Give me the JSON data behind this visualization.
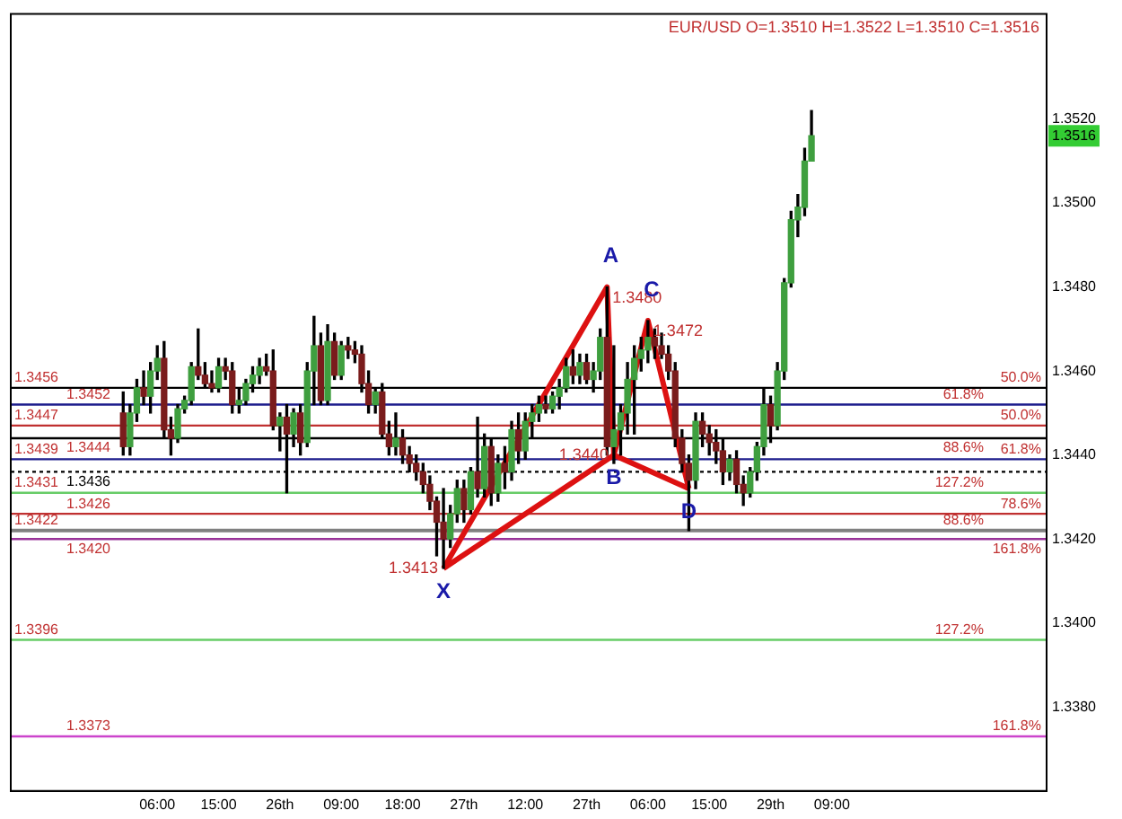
{
  "chart_data": {
    "type": "candlestick",
    "title": "EUR/USD O=1.3510 H=1.3522 L=1.3510 C=1.3516",
    "categories": [
      null,
      null,
      null,
      null,
      null,
      null,
      null,
      null,
      null,
      null,
      null,
      null,
      null,
      null,
      null,
      null,
      null,
      null,
      null,
      null,
      null,
      "06:00",
      null,
      null,
      null,
      null,
      null,
      null,
      null,
      null,
      "15:00",
      null,
      null,
      null,
      null,
      null,
      null,
      null,
      null,
      "26th",
      null,
      null,
      null,
      null,
      null,
      null,
      null,
      null,
      "09:00",
      null,
      null,
      null,
      null,
      null,
      null,
      null,
      null,
      "18:00",
      null,
      null,
      null,
      null,
      null,
      null,
      null,
      null,
      "27th",
      null,
      null,
      null,
      null,
      null,
      null,
      null,
      null,
      "12:00",
      null,
      null,
      null,
      null,
      null,
      null,
      null,
      null,
      "27th",
      null,
      null,
      null,
      null,
      null,
      null,
      null,
      null,
      "06:00",
      null,
      null,
      null,
      null,
      null,
      null,
      null,
      null,
      "15:00",
      null,
      null,
      null,
      null,
      null,
      null,
      null,
      null,
      "29th",
      null,
      null,
      null,
      null,
      null,
      null,
      null,
      null,
      "09:00",
      null,
      null,
      null,
      null,
      null,
      null,
      null,
      null,
      null,
      null,
      null,
      null,
      null,
      null,
      null,
      null,
      null,
      null,
      null,
      null,
      null,
      null,
      null,
      null,
      null,
      null,
      null,
      null,
      null,
      null,
      null
    ],
    "ohlc": [
      null,
      null,
      null,
      null,
      null,
      null,
      null,
      null,
      null,
      null,
      null,
      null,
      null,
      null,
      null,
      null,
      [
        1.345,
        1.3455,
        1.344,
        1.3442
      ],
      [
        1.3442,
        1.3452,
        1.344,
        1.345
      ],
      [
        1.345,
        1.3458,
        1.3448,
        1.3456
      ],
      [
        1.3456,
        1.346,
        1.3452,
        1.3454
      ],
      [
        1.3454,
        1.3462,
        1.345,
        1.346
      ],
      [
        1.346,
        1.3466,
        1.3458,
        1.3463
      ],
      [
        1.3463,
        1.3467,
        1.3444,
        1.3446
      ],
      [
        1.3446,
        1.3449,
        1.344,
        1.3444
      ],
      [
        1.3444,
        1.3452,
        1.3443,
        1.3451
      ],
      [
        1.3451,
        1.3454,
        1.345,
        1.3453
      ],
      [
        1.3453,
        1.3462,
        1.3452,
        1.3461
      ],
      [
        1.3461,
        1.347,
        1.3458,
        1.3459
      ],
      [
        1.3459,
        1.3462,
        1.3456,
        1.3457
      ],
      [
        1.3457,
        1.346,
        1.3455,
        1.3456
      ],
      [
        1.3456,
        1.3463,
        1.3455,
        1.3461
      ],
      [
        1.3461,
        1.3463,
        1.3458,
        1.346
      ],
      [
        1.346,
        1.3462,
        1.345,
        1.3452
      ],
      [
        1.3452,
        1.3456,
        1.345,
        1.3453
      ],
      [
        1.3453,
        1.3458,
        1.3452,
        1.3457
      ],
      [
        1.3457,
        1.3461,
        1.3455,
        1.3459
      ],
      [
        1.3459,
        1.3463,
        1.3457,
        1.3461
      ],
      [
        1.3461,
        1.3464,
        1.3459,
        1.346
      ],
      [
        1.346,
        1.3465,
        1.3446,
        1.3447
      ],
      [
        1.3447,
        1.345,
        1.3441,
        1.3449
      ],
      [
        1.3449,
        1.3452,
        1.3431,
        1.3445
      ],
      [
        1.3445,
        1.3451,
        1.3442,
        1.345
      ],
      [
        1.345,
        1.3452,
        1.344,
        1.3443
      ],
      [
        1.3443,
        1.3462,
        1.3442,
        1.346
      ],
      [
        1.346,
        1.3473,
        1.3452,
        1.3466
      ],
      [
        1.3466,
        1.3469,
        1.3452,
        1.3453
      ],
      [
        1.3453,
        1.3471,
        1.3452,
        1.3467
      ],
      [
        1.3467,
        1.3469,
        1.3458,
        1.3459
      ],
      [
        1.3459,
        1.3467,
        1.3458,
        1.3466
      ],
      [
        1.3466,
        1.3468,
        1.3463,
        1.3465
      ],
      [
        1.3465,
        1.3467,
        1.3462,
        1.3464
      ],
      [
        1.3464,
        1.3466,
        1.3455,
        1.3457
      ],
      [
        1.3457,
        1.346,
        1.345,
        1.3452
      ],
      [
        1.3452,
        1.3456,
        1.345,
        1.3455
      ],
      [
        1.3455,
        1.3457,
        1.3444,
        1.3445
      ],
      [
        1.3445,
        1.3448,
        1.344,
        1.3442
      ],
      [
        1.3442,
        1.345,
        1.344,
        1.3444
      ],
      [
        1.3444,
        1.3446,
        1.3438,
        1.344
      ],
      [
        1.344,
        1.3442,
        1.3436,
        1.3438
      ],
      [
        1.3438,
        1.344,
        1.3434,
        1.3436
      ],
      [
        1.3436,
        1.3438,
        1.3431,
        1.3433
      ],
      [
        1.3433,
        1.3435,
        1.3427,
        1.3429
      ],
      [
        1.3429,
        1.343,
        1.3416,
        1.3424
      ],
      [
        1.3424,
        1.3432,
        1.3413,
        1.342
      ],
      [
        1.342,
        1.3428,
        1.3418,
        1.3426
      ],
      [
        1.3426,
        1.3434,
        1.3424,
        1.3432
      ],
      [
        1.3432,
        1.3434,
        1.3424,
        1.3427
      ],
      [
        1.3427,
        1.3437,
        1.3426,
        1.3436
      ],
      [
        1.3436,
        1.3449,
        1.343,
        1.3432
      ],
      [
        1.3432,
        1.3445,
        1.343,
        1.3442
      ],
      [
        1.3442,
        1.3444,
        1.3428,
        1.3431
      ],
      [
        1.3431,
        1.344,
        1.3429,
        1.3438
      ],
      [
        1.3438,
        1.3442,
        1.3432,
        1.3436
      ],
      [
        1.3436,
        1.3448,
        1.3434,
        1.3446
      ],
      [
        1.3446,
        1.345,
        1.3438,
        1.3441
      ],
      [
        1.3441,
        1.345,
        1.3439,
        1.3448
      ],
      [
        1.3448,
        1.3452,
        1.3444,
        1.345
      ],
      [
        1.345,
        1.3454,
        1.3448,
        1.3452
      ],
      [
        1.3452,
        1.3454,
        1.345,
        1.3451
      ],
      [
        1.3451,
        1.3455,
        1.345,
        1.3454
      ],
      [
        1.3454,
        1.3458,
        1.3451,
        1.3456
      ],
      [
        1.3456,
        1.3463,
        1.3455,
        1.3461
      ],
      [
        1.3461,
        1.3465,
        1.3457,
        1.3459
      ],
      [
        1.3459,
        1.3464,
        1.3457,
        1.3462
      ],
      [
        1.3462,
        1.3464,
        1.3457,
        1.3458
      ],
      [
        1.3458,
        1.3462,
        1.3455,
        1.346
      ],
      [
        1.346,
        1.347,
        1.3458,
        1.3468
      ],
      [
        1.3468,
        1.348,
        1.344,
        1.3442
      ],
      [
        1.3442,
        1.3466,
        1.3438,
        1.3446
      ],
      [
        1.3446,
        1.3452,
        1.344,
        1.345
      ],
      [
        1.345,
        1.3462,
        1.3445,
        1.3458
      ],
      [
        1.3458,
        1.3466,
        1.3445,
        1.3463
      ],
      [
        1.3463,
        1.3468,
        1.346,
        1.3465
      ],
      [
        1.3465,
        1.3472,
        1.3462,
        1.3468
      ],
      [
        1.3468,
        1.347,
        1.3463,
        1.3466
      ],
      [
        1.3466,
        1.3469,
        1.3463,
        1.3464
      ],
      [
        1.3464,
        1.3466,
        1.3458,
        1.346
      ],
      [
        1.346,
        1.3462,
        1.3442,
        1.3444
      ],
      [
        1.3444,
        1.3446,
        1.3436,
        1.3438
      ],
      [
        1.3438,
        1.344,
        1.3422,
        1.3434
      ],
      [
        1.3434,
        1.345,
        1.3432,
        1.3448
      ],
      [
        1.3448,
        1.345,
        1.3442,
        1.3445
      ],
      [
        1.3445,
        1.3447,
        1.344,
        1.3443
      ],
      [
        1.3443,
        1.3446,
        1.3438,
        1.3441
      ],
      [
        1.3441,
        1.3444,
        1.3433,
        1.3436
      ],
      [
        1.3436,
        1.344,
        1.3434,
        1.3439
      ],
      [
        1.3439,
        1.3441,
        1.3431,
        1.3433
      ],
      [
        1.3433,
        1.3435,
        1.3428,
        1.3431
      ],
      [
        1.3431,
        1.3437,
        1.343,
        1.3436
      ],
      [
        1.3436,
        1.3443,
        1.3434,
        1.3442
      ],
      [
        1.3442,
        1.3456,
        1.344,
        1.3452
      ],
      [
        1.3452,
        1.3454,
        1.3443,
        1.3447
      ],
      [
        1.3447,
        1.3462,
        1.3446,
        1.346
      ],
      [
        1.346,
        1.3482,
        1.3458,
        1.3481
      ],
      [
        1.3481,
        1.3498,
        1.348,
        1.3496
      ],
      [
        1.3496,
        1.3502,
        1.3492,
        1.3499
      ],
      [
        1.3499,
        1.3513,
        1.3497,
        1.351
      ],
      [
        1.351,
        1.3522,
        1.351,
        1.3516
      ],
      null,
      null,
      null,
      null,
      null,
      null,
      null,
      null,
      null,
      null,
      null,
      null,
      null,
      null,
      null,
      null,
      null,
      null,
      null,
      null,
      null,
      null,
      null,
      null,
      null,
      null,
      null,
      null,
      null,
      null,
      null,
      null,
      null,
      null
    ],
    "series": [
      {
        "type": "line",
        "color": "#dd1111",
        "values": [
          null,
          null,
          null,
          null,
          null,
          null,
          null,
          null,
          null,
          null,
          null,
          null,
          null,
          null,
          null,
          null,
          null,
          null,
          null,
          null,
          null,
          null,
          null,
          null,
          null,
          null,
          null,
          null,
          null,
          null,
          null,
          null,
          null,
          null,
          null,
          null,
          null,
          null,
          null,
          null,
          null,
          null,
          null,
          null,
          null,
          null,
          null,
          null,
          null,
          null,
          null,
          null,
          null,
          null,
          null,
          null,
          null,
          null,
          null,
          null,
          null,
          null,
          null,
          1.3413,
          null,
          null,
          null,
          null,
          null,
          null,
          null,
          null,
          null,
          null,
          null,
          null,
          null,
          null,
          null,
          null,
          null,
          null,
          null,
          null,
          null,
          null,
          null,
          1.348,
          1.344,
          null,
          null,
          null,
          null,
          1.3472,
          null,
          null,
          null,
          null,
          null,
          1.3432,
          null,
          null,
          null,
          null,
          null,
          null,
          null,
          null,
          null,
          null,
          null,
          null,
          null,
          null,
          null,
          null,
          null,
          null,
          null,
          null,
          null,
          null,
          null,
          null,
          null,
          null,
          null,
          null,
          null,
          null,
          null,
          null,
          null,
          null,
          null,
          null,
          null,
          null,
          null,
          null,
          null,
          null,
          null,
          null,
          null,
          null,
          null,
          null,
          null,
          null,
          null,
          null
        ],
        "value_labels": [
          null,
          null,
          null,
          null,
          null,
          null,
          null,
          null,
          null,
          null,
          null,
          null,
          null,
          null,
          null,
          null,
          null,
          null,
          null,
          null,
          null,
          null,
          null,
          null,
          null,
          null,
          null,
          null,
          null,
          null,
          null,
          null,
          null,
          null,
          null,
          null,
          null,
          null,
          null,
          null,
          null,
          null,
          null,
          null,
          null,
          null,
          null,
          null,
          null,
          null,
          null,
          null,
          null,
          null,
          null,
          null,
          null,
          null,
          null,
          null,
          null,
          null,
          null,
          "1.3413",
          null,
          null,
          null,
          null,
          null,
          null,
          null,
          null,
          null,
          null,
          null,
          null,
          null,
          null,
          null,
          null,
          null,
          null,
          null,
          null,
          null,
          null,
          null,
          "1.3480",
          "1.3440",
          null,
          null,
          null,
          null,
          "1.3472",
          null,
          null,
          null,
          null,
          null,
          null,
          null,
          null,
          null,
          null,
          null,
          null,
          null,
          null,
          null,
          null,
          null,
          null,
          null,
          null,
          null,
          null,
          null,
          null,
          null,
          null,
          null,
          null,
          null,
          null,
          null,
          null,
          null,
          null,
          null,
          null,
          null,
          null,
          null,
          null,
          null,
          null,
          null,
          null,
          null,
          null,
          null,
          null,
          null,
          null,
          null,
          null,
          null,
          null,
          null,
          null,
          null,
          null
        ]
      },
      {
        "type": "line",
        "color": "#dd1111",
        "values": [
          null,
          null,
          null,
          null,
          null,
          null,
          null,
          null,
          null,
          null,
          null,
          null,
          null,
          null,
          null,
          null,
          null,
          null,
          null,
          null,
          null,
          null,
          null,
          null,
          null,
          null,
          null,
          null,
          null,
          null,
          null,
          null,
          null,
          null,
          null,
          null,
          null,
          null,
          null,
          null,
          null,
          null,
          null,
          null,
          null,
          null,
          null,
          null,
          null,
          null,
          null,
          null,
          null,
          null,
          null,
          null,
          null,
          null,
          null,
          null,
          null,
          null,
          null,
          1.3413,
          null,
          null,
          null,
          null,
          null,
          null,
          null,
          null,
          null,
          null,
          null,
          null,
          null,
          null,
          null,
          null,
          null,
          null,
          null,
          null,
          null,
          null,
          null,
          null,
          1.344,
          null,
          null,
          null,
          null,
          null,
          null,
          null,
          null,
          null,
          null,
          1.3432,
          null,
          null,
          null,
          null,
          null,
          null,
          null,
          null,
          null,
          null,
          null,
          null,
          null,
          null,
          null,
          null,
          null,
          null,
          null,
          null,
          null,
          null,
          null,
          null,
          null,
          null,
          null,
          null,
          null,
          null,
          null,
          null,
          null,
          null,
          null,
          null,
          null,
          null,
          null,
          null,
          null,
          null,
          null,
          null,
          null,
          null,
          null,
          null,
          null,
          null,
          null,
          null
        ]
      }
    ],
    "ylim": [
      1.336,
      1.3545
    ],
    "yticks": [
      {
        "value": 1.338,
        "label": "1.3380"
      },
      {
        "value": 1.34,
        "label": "1.3400"
      },
      {
        "value": 1.342,
        "label": "1.3420"
      },
      {
        "value": 1.344,
        "label": "1.3440"
      },
      {
        "value": 1.346,
        "label": "1.3460"
      },
      {
        "value": 1.348,
        "label": "1.3480"
      },
      {
        "value": 1.35,
        "label": "1.3500"
      },
      {
        "value": 1.352,
        "label": "1.3520"
      }
    ],
    "ref_lines": [
      {
        "axis": "y",
        "value": 1.3456,
        "label": "1.3456",
        "color": "#000000"
      },
      {
        "axis": "y",
        "value": 1.3452,
        "label": "1.3452",
        "color": "#1c1c8c"
      },
      {
        "axis": "y",
        "value": 1.3447,
        "label": "1.3447",
        "color": "#c03030"
      },
      {
        "axis": "y",
        "value": 1.3444,
        "label": "1.3444",
        "color": "#000000"
      },
      {
        "axis": "y",
        "value": 1.3439,
        "label": "1.3439",
        "color": "#1c1c8c"
      },
      {
        "axis": "y",
        "value": 1.3436,
        "label": "1.3436",
        "color": "#000000",
        "line_style": "dotted"
      },
      {
        "axis": "y",
        "value": 1.3431,
        "label": "1.3431",
        "color": "#66cc66"
      },
      {
        "axis": "y",
        "value": 1.3426,
        "label": "1.3426",
        "color": "#c03030"
      },
      {
        "axis": "y",
        "value": 1.3422,
        "label": "1.3422",
        "color": "#808080"
      },
      {
        "axis": "y",
        "value": 1.342,
        "label": "1.3420",
        "color": "#993399"
      },
      {
        "axis": "y",
        "value": 1.3396,
        "label": "1.3396",
        "color": "#66cc66"
      },
      {
        "axis": "y",
        "value": 1.3373,
        "label": "1.3373",
        "color": "#cc44cc"
      }
    ],
    "annotations": [
      "X",
      "A",
      "B",
      "C",
      "D",
      "1.3516",
      {
        "text": "50.0%",
        "y": 1.3456
      },
      {
        "text": "61.8%",
        "y": 1.3452
      },
      {
        "text": "50.0%",
        "y": 1.3447
      },
      {
        "text": "88.6%",
        "y": 1.3444
      },
      {
        "text": "61.8%",
        "y": 1.3439
      },
      {
        "text": "127.2%",
        "y": 1.3431
      },
      {
        "text": "78.6%",
        "y": 1.3426
      },
      {
        "text": "88.6%",
        "y": 1.3422
      },
      {
        "text": "161.8%",
        "y": 1.342
      },
      {
        "text": "127.2%",
        "y": 1.3396
      },
      {
        "text": "161.8%",
        "y": 1.3373
      }
    ],
    "grid": false,
    "legend": false,
    "marker": "none"
  }
}
